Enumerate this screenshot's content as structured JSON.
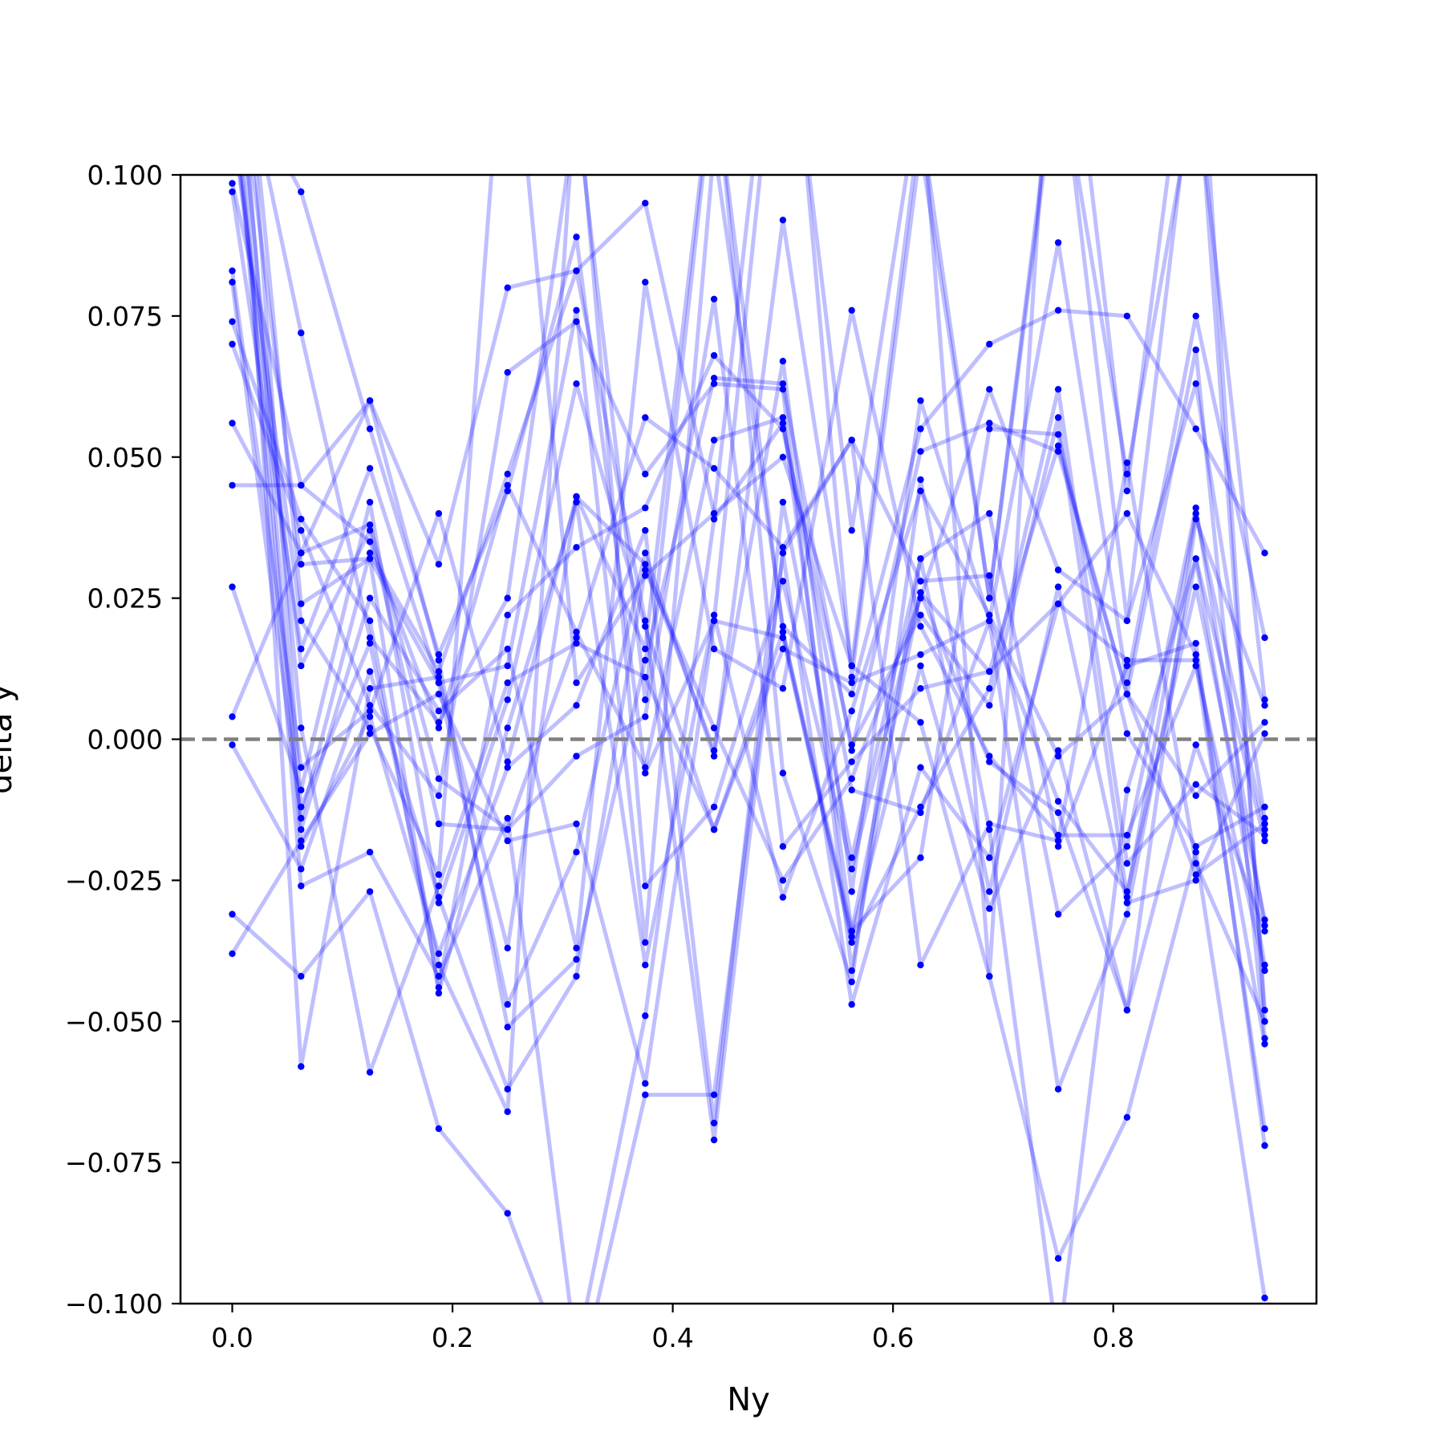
{
  "chart_data": {
    "type": "line",
    "title": "",
    "xlabel": "Ny",
    "ylabel": "delta y",
    "xlim": [
      -0.047,
      0.9845
    ],
    "ylim": [
      -0.1,
      0.1
    ],
    "x_ticks": [
      0.0,
      0.2,
      0.4,
      0.6,
      0.8
    ],
    "x_tick_labels": [
      "0.0",
      "0.2",
      "0.4",
      "0.6",
      "0.8"
    ],
    "y_ticks": [
      0.1,
      0.075,
      0.05,
      0.025,
      0.0,
      -0.025,
      -0.05,
      -0.075,
      -0.1
    ],
    "y_tick_labels": [
      "0.100",
      "0.075",
      "0.050",
      "0.025",
      "0.000",
      "−0.025",
      "−0.050",
      "−0.075",
      "−0.100"
    ],
    "reference_line": {
      "y": 0.0,
      "style": "dashed",
      "color": "#808080"
    },
    "line_color": "#0000ff",
    "line_opacity": 0.25,
    "marker_color": "#0000ff",
    "grid": false,
    "legend": "none",
    "x": [
      0.0,
      0.0625,
      0.125,
      0.1875,
      0.25,
      0.3125,
      0.375,
      0.4375,
      0.5,
      0.5625,
      0.625,
      0.6875,
      0.75,
      0.8125,
      0.875,
      0.9375
    ],
    "series": [
      {
        "values": [
          0.0985,
          0.045,
          0.06,
          0.031,
          0.08,
          0.083,
          0.095,
          0.04,
          0.05,
          0.013,
          0.003,
          -0.042,
          -0.092,
          -0.067,
          -0.02,
          -0.099
        ]
      },
      {
        "values": [
          0.097,
          0.016,
          0.048,
          0.01,
          0.013,
          0.076,
          -0.036,
          0.105,
          0.02,
          0.008,
          0.055,
          0.07,
          0.076,
          0.075,
          0.055,
          0.033
        ]
      },
      {
        "values": [
          0.083,
          -0.005,
          0.005,
          0.04,
          -0.004,
          0.043,
          0.031,
          -0.002,
          0.067,
          -0.027,
          0.06,
          0.021,
          0.088,
          0.01,
          0.075,
          0.018
        ]
      },
      {
        "values": [
          0.081,
          -0.014,
          0.033,
          0.012,
          0.047,
          0.083,
          0.021,
          -0.071,
          0.033,
          0.053,
          -0.04,
          -0.015,
          -0.018,
          0.049,
          -0.022,
          -0.05
        ]
      },
      {
        "values": [
          0.074,
          0.039,
          0.021,
          -0.044,
          0.022,
          0.034,
          0.041,
          0.068,
          0.055,
          -0.001,
          0.022,
          0.006,
          0.057,
          -0.028,
          0.04,
          -0.016
        ]
      },
      {
        "values": [
          0.07,
          0.037,
          0.006,
          -0.01,
          0.065,
          0.074,
          0.047,
          0.063,
          0.062,
          -0.041,
          0.032,
          0.04,
          -0.019,
          0.013,
          0.017,
          -0.072
        ]
      },
      {
        "values": [
          0.056,
          0.033,
          0.038,
          -0.007,
          -0.016,
          0.018,
          0.057,
          0.048,
          0.034,
          0.053,
          0.028,
          0.029,
          -0.031,
          -0.019,
          0.041,
          -0.033
        ]
      },
      {
        "values": [
          0.045,
          0.045,
          0.035,
          0.002,
          0.045,
          0.019,
          -0.005,
          0.053,
          0.057,
          -0.034,
          -0.021,
          0.055,
          0.054,
          0.001,
          -0.019,
          -0.012
        ]
      },
      {
        "values": [
          0.027,
          -0.009,
          0.042,
          -0.029,
          0.007,
          0.063,
          0.02,
          -0.016,
          0.016,
          0.01,
          0.015,
          0.021,
          -0.062,
          -0.031,
          0.032,
          -0.04
        ]
      },
      {
        "values": [
          0.004,
          0.033,
          0.06,
          0.014,
          -0.051,
          -0.039,
          0.014,
          0.064,
          0.063,
          -0.002,
          0.051,
          0.056,
          0.051,
          0.008,
          0.069,
          -0.053
        ]
      },
      {
        "values": [
          -0.001,
          -0.023,
          0.012,
          -0.028,
          -0.062,
          -0.042,
          0.03,
          0.002,
          -0.025,
          -0.007,
          0.025,
          0.062,
          0.03,
          0.021,
          0.063,
          -0.014
        ]
      },
      {
        "values": [
          -0.031,
          -0.042,
          -0.027,
          -0.069,
          -0.084,
          -0.116,
          -0.063,
          -0.063,
          0.033,
          -0.047,
          -0.005,
          -0.021,
          0.024,
          0.014,
          0.014,
          -0.069
        ]
      },
      {
        "values": [
          -0.038,
          -0.018,
          0.001,
          0.008,
          -0.018,
          -0.015,
          -0.061,
          0.021,
          0.018,
          -0.035,
          0.013,
          -0.03,
          -0.002,
          -0.048,
          0.039,
          0.006
        ]
      },
      {
        "values": [
          0.16,
          -0.012,
          0.017,
          -0.04,
          -0.066,
          0.118,
          -0.026,
          -0.012,
          0.028,
          -0.023,
          0.026,
          -0.004,
          -0.013,
          -0.048,
          -0.001,
          -0.034
        ]
      },
      {
        "values": [
          0.15,
          0.024,
          0.032,
          -0.045,
          0.002,
          0.042,
          -0.04,
          0.022,
          -0.028,
          0.005,
          0.044,
          0.022,
          -0.003,
          0.008,
          -0.01,
          0.003
        ]
      },
      {
        "values": [
          0.14,
          -0.019,
          0.004,
          -0.038,
          -0.005,
          0.006,
          0.037,
          -0.068,
          0.042,
          -0.021,
          0.032,
          -0.027,
          0.027,
          -0.029,
          -0.025,
          0.001
        ]
      },
      {
        "values": [
          0.13,
          0.002,
          -0.059,
          -0.026,
          0.01,
          0.017,
          0.011,
          -0.016,
          0.019,
          -0.036,
          -0.012,
          0.009,
          0.062,
          -0.022,
          -0.008,
          -0.017
        ]
      },
      {
        "values": [
          0.12,
          -0.016,
          0.025,
          0.005,
          0.016,
          -0.037,
          0.081,
          0.016,
          0.009,
          0.076,
          0.02,
          -0.003,
          -0.017,
          -0.017,
          0.013,
          -0.041
        ]
      },
      {
        "values": [
          0.11,
          0.013,
          0.037,
          -0.015,
          -0.016,
          -0.003,
          0.004,
          0.078,
          -0.019,
          -0.004,
          0.009,
          0.012,
          0.024,
          0.04,
          0.015,
          -0.054
        ]
      },
      {
        "values": [
          0.12,
          -0.026,
          -0.02,
          -0.042,
          -0.014,
          -0.109,
          -0.049,
          0.039,
          0.056,
          -0.009,
          -0.013,
          0.021,
          -0.011,
          -0.027,
          0.027,
          -0.032
        ]
      },
      {
        "values": [
          0.14,
          -0.058,
          0.009,
          0.011,
          -0.037,
          0.043,
          0.016,
          0.12,
          -0.006,
          -0.043,
          0.046,
          -0.016,
          -0.108,
          -0.009,
          0.032,
          -0.018
        ]
      },
      {
        "values": [
          0.13,
          0.072,
          0.018,
          0.003,
          0.025,
          0.112,
          0.007,
          0.118,
          0.019,
          -0.034,
          0.026,
          0.012,
          0.052,
          0.008,
          -0.024,
          -0.015
        ]
      },
      {
        "values": [
          0.12,
          0.097,
          0.055,
          0.015,
          0.044,
          0.089,
          -0.006,
          0.021,
          0.139,
          0.037,
          0.116,
          -0.042,
          0.148,
          0.044,
          0.138,
          -0.05
        ]
      },
      {
        "values": [
          0.11,
          0.021,
          0.002,
          -0.024,
          0.138,
          0.01,
          0.029,
          0.04,
          0.148,
          0.011,
          0.105,
          0.025,
          0.121,
          0.047,
          0.116,
          0.007
        ]
      },
      {
        "values": [
          0.13,
          0.031,
          0.032,
          0.01,
          -0.047,
          -0.02,
          0.033,
          -0.003,
          0.092,
          0.013,
          0.11,
          0.025,
          0.124,
          0.021,
          0.123,
          -0.048
        ]
      }
    ]
  }
}
